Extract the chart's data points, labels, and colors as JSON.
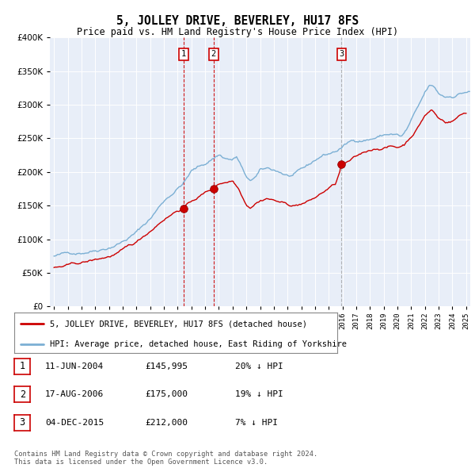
{
  "title": "5, JOLLEY DRIVE, BEVERLEY, HU17 8FS",
  "subtitle": "Price paid vs. HM Land Registry's House Price Index (HPI)",
  "legend_line1": "5, JOLLEY DRIVE, BEVERLEY, HU17 8FS (detached house)",
  "legend_line2": "HPI: Average price, detached house, East Riding of Yorkshire",
  "sale_dates_decimal": [
    2004.44,
    2006.62,
    2015.92
  ],
  "sale_prices": [
    145995,
    175000,
    212000
  ],
  "sale_labels": [
    "1",
    "2",
    "3"
  ],
  "sale_notes": [
    "11-JUN-2004",
    "17-AUG-2006",
    "04-DEC-2015"
  ],
  "sale_amounts": [
    "£145,995",
    "£175,000",
    "£212,000"
  ],
  "sale_pct": [
    "20% ↓ HPI",
    "19% ↓ HPI",
    "7% ↓ HPI"
  ],
  "price_color": "#cc0000",
  "hpi_color": "#7bafd4",
  "vline_color_red": "#cc0000",
  "vline_color_gray": "#999999",
  "marker_box_color": "#cc0000",
  "ylim": [
    0,
    400000
  ],
  "yticks": [
    0,
    50000,
    100000,
    150000,
    200000,
    250000,
    300000,
    350000,
    400000
  ],
  "background_color": "#e8eef8",
  "footer": "Contains HM Land Registry data © Crown copyright and database right 2024.\nThis data is licensed under the Open Government Licence v3.0."
}
